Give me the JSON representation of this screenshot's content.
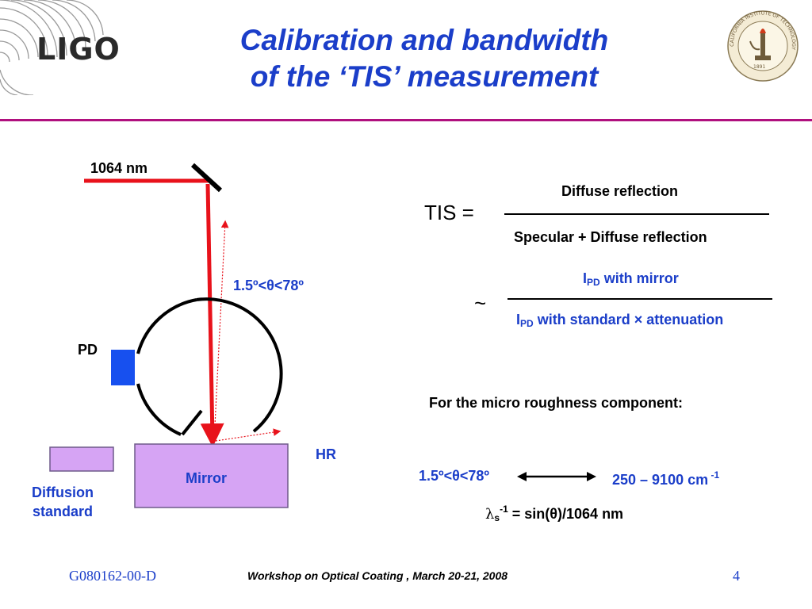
{
  "header": {
    "logo_text": "LIGO",
    "title_line1": "Calibration and bandwidth",
    "title_line2": "of the ‘TIS’ measurement",
    "seal_text": "CALIFORNIA INSTITUTE OF TECHNOLOGY",
    "seal_year": "1891"
  },
  "diagram": {
    "laser_label": "1064 nm",
    "angle_label": "1.5º<θ<78º",
    "pd_label": "PD",
    "hr_label": "HR",
    "mirror_label": "Mirror",
    "diffusion_line1": "Diffusion",
    "diffusion_line2": "standard"
  },
  "equations": {
    "tis_label": "TIS =",
    "tis_numerator": "Diffuse reflection",
    "tis_denominator": "Specular + Diffuse reflection",
    "approx_symbol": "~",
    "ipd_base": "I",
    "ipd_sub": "PD",
    "approx_numerator_rest": " with mirror",
    "approx_denominator_rest": " with standard × attenuation",
    "micro_heading": "For the micro roughness component:",
    "range_angle": "1.5º<θ<78º",
    "range_wavenumber": "250 – 9100 cm",
    "range_exp": " -1",
    "lambda_symbol": "λ",
    "lambda_sub": "s",
    "lambda_sup": "-1",
    "lambda_rest": " = sin(θ)/1064 nm"
  },
  "footer": {
    "doc_id": "G080162-00-D",
    "workshop": "Workshop on Optical Coating , March 20-21, 2008",
    "page_number": "4"
  },
  "colors": {
    "title_blue": "#1b3ec9",
    "rule_magenta": "#b0107e",
    "laser_red": "#e8121b",
    "mirror_fill": "#d6a4f4",
    "pd_blue": "#1750ef"
  }
}
